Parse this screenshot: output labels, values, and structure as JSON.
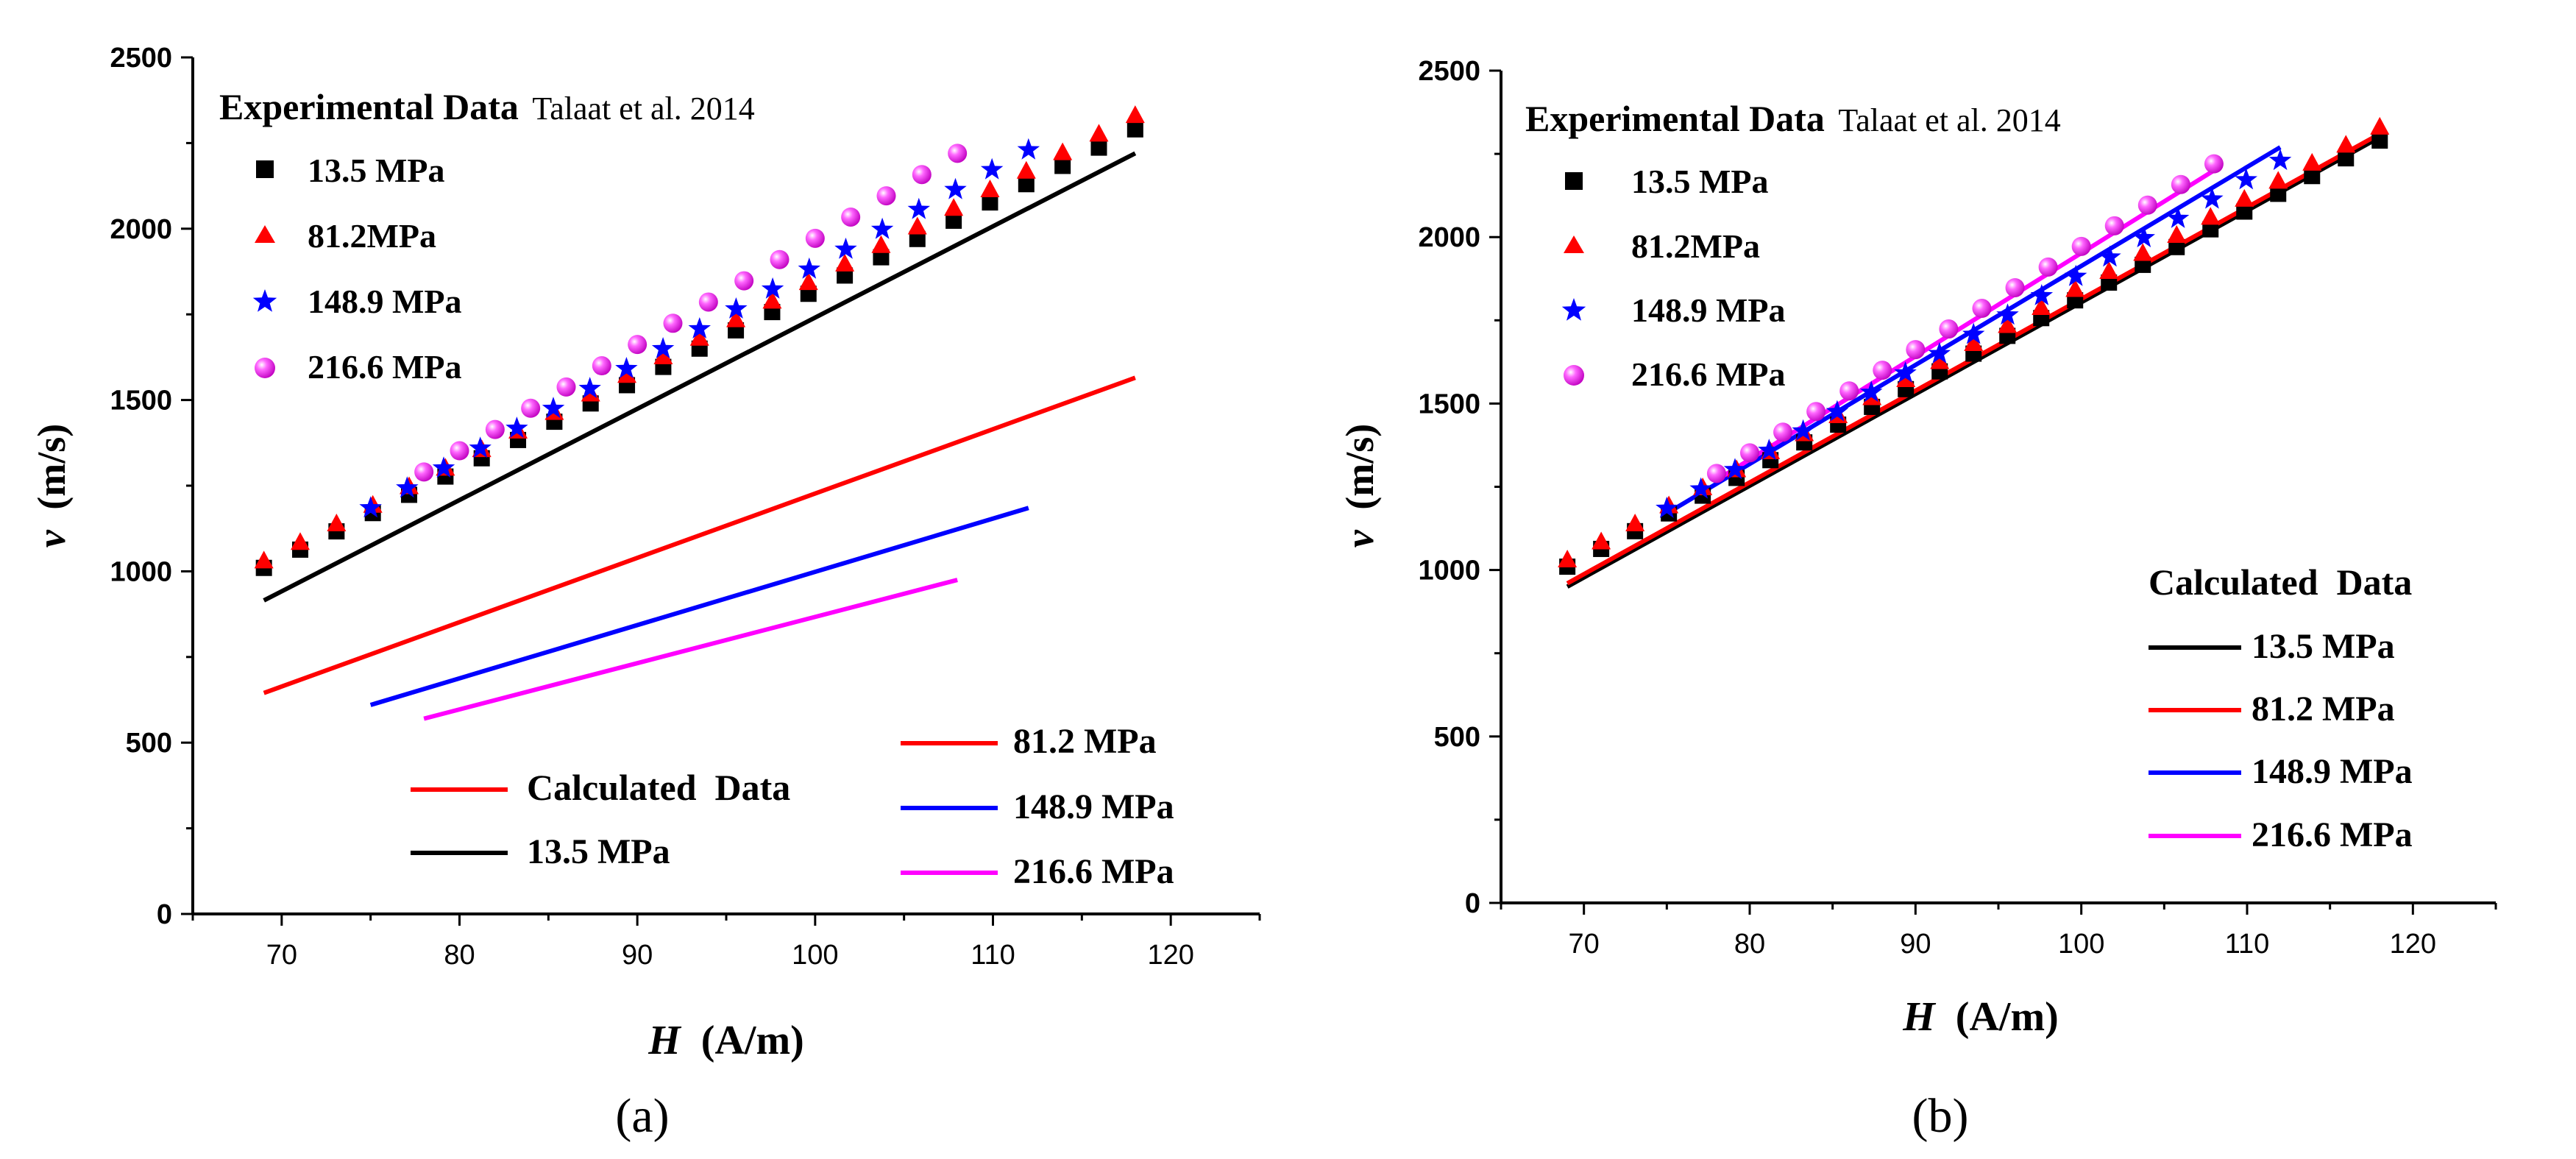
{
  "chart_data": [
    {
      "panel_label": "(a)",
      "type": "scatter",
      "xlabel_symbol": "H",
      "xlabel_unit": "(A/m)",
      "ylabel_symbol": "v",
      "ylabel_unit": "(m/s)",
      "xlim": [
        65,
        125
      ],
      "ylim": [
        0,
        2500
      ],
      "xticks": [
        70,
        80,
        90,
        100,
        110,
        120
      ],
      "yticks": [
        0,
        500,
        1000,
        1500,
        2000,
        2500
      ],
      "experimental_title": "Experimental Data",
      "experimental_source": "Talaat et al. 2014",
      "calculated_title": "Calculated  Data",
      "experimental": [
        {
          "name": "13.5 MPa",
          "marker": "square",
          "color": "#000000",
          "x_start": 69,
          "x_end": 118,
          "y_start": 1010,
          "y_end": 2290,
          "count": 25
        },
        {
          "name": "81.2MPa",
          "marker": "triangle",
          "color": "#ff0000",
          "x_start": 69,
          "x_end": 118,
          "y_start": 1030,
          "y_end": 2330,
          "count": 25
        },
        {
          "name": "148.9 MPa",
          "marker": "star",
          "color": "#0000ff",
          "x_start": 75,
          "x_end": 112,
          "y_start": 1185,
          "y_end": 2230,
          "count": 19
        },
        {
          "name": "216.6 MPa",
          "marker": "sphere",
          "color": "#ff00ff",
          "x_start": 78,
          "x_end": 108,
          "y_start": 1290,
          "y_end": 2220,
          "count": 16
        }
      ],
      "calculated": [
        {
          "name": "13.5 MPa",
          "color": "#000000",
          "x": [
            69,
            118
          ],
          "y": [
            915,
            2220
          ]
        },
        {
          "name": "81.2 MPa",
          "color": "#ff0000",
          "x": [
            69,
            118
          ],
          "y": [
            645,
            1565
          ]
        },
        {
          "name": "148.9 MPa",
          "color": "#0000ff",
          "x": [
            75,
            112
          ],
          "y": [
            610,
            1185
          ]
        },
        {
          "name": "216.6 MPa",
          "color": "#ff00ff",
          "x": [
            78,
            108
          ],
          "y": [
            570,
            975
          ]
        }
      ]
    },
    {
      "panel_label": "(b)",
      "type": "scatter",
      "xlabel_symbol": "H",
      "xlabel_unit": "(A/m)",
      "ylabel_symbol": "v",
      "ylabel_unit": "(m/s)",
      "xlim": [
        65,
        125
      ],
      "ylim": [
        0,
        2500
      ],
      "xticks": [
        70,
        80,
        90,
        100,
        110,
        120
      ],
      "yticks": [
        0,
        500,
        1000,
        1500,
        2000,
        2500
      ],
      "experimental_title": "Experimental Data",
      "experimental_source": "Talaat et al. 2014",
      "calculated_title": "Calculated  Data",
      "experimental": [
        {
          "name": "13.5 MPa",
          "marker": "square",
          "color": "#000000",
          "x_start": 69,
          "x_end": 118,
          "y_start": 1010,
          "y_end": 2290,
          "count": 25
        },
        {
          "name": "81.2MPa",
          "marker": "triangle",
          "color": "#ff0000",
          "x_start": 69,
          "x_end": 118,
          "y_start": 1030,
          "y_end": 2330,
          "count": 25
        },
        {
          "name": "148.9 MPa",
          "marker": "star",
          "color": "#0000ff",
          "x_start": 75,
          "x_end": 112,
          "y_start": 1185,
          "y_end": 2230,
          "count": 19
        },
        {
          "name": "216.6 MPa",
          "marker": "sphere",
          "color": "#ff00ff",
          "x_start": 78,
          "x_end": 108,
          "y_start": 1290,
          "y_end": 2220,
          "count": 16
        }
      ],
      "calculated": [
        {
          "name": "13.5 MPa",
          "color": "#000000",
          "x": [
            69,
            118
          ],
          "y": [
            950,
            2300
          ]
        },
        {
          "name": "81.2 MPa",
          "color": "#ff0000",
          "x": [
            69,
            118
          ],
          "y": [
            960,
            2310
          ]
        },
        {
          "name": "148.9 MPa",
          "color": "#0000ff",
          "x": [
            75,
            112
          ],
          "y": [
            1170,
            2270
          ]
        },
        {
          "name": "216.6 MPa",
          "color": "#ff00ff",
          "x": [
            78,
            108
          ],
          "y": [
            1270,
            2200
          ]
        }
      ]
    }
  ]
}
